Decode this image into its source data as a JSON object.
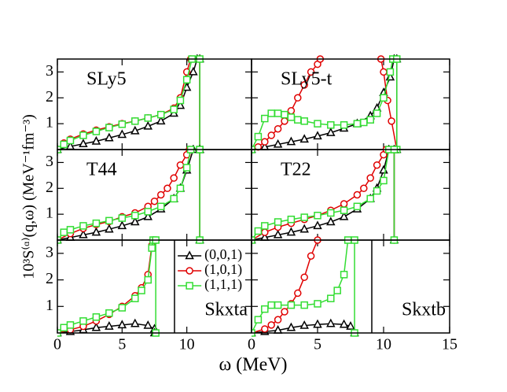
{
  "xlabel": "ω (MeV)",
  "ylabel": "10³S⁽ᵅ⁾(q,ω) (MeV⁻¹fm⁻³)",
  "chart_data": [
    {
      "type": "line",
      "label": "SLy5",
      "xlim": [
        0,
        15
      ],
      "ylim": [
        0,
        3.5
      ],
      "xticks": [
        0,
        5,
        10
      ],
      "yticks": [
        1,
        2,
        3
      ],
      "show_xtick_labels": false,
      "series": [
        {
          "color": "#000000",
          "marker": "triangle",
          "x": [
            0,
            1,
            2,
            3,
            4,
            5,
            6,
            7,
            8,
            9,
            9.5,
            10,
            10.5,
            10.8,
            11,
            11
          ],
          "values": [
            0,
            0.12,
            0.22,
            0.32,
            0.45,
            0.58,
            0.72,
            0.9,
            1.1,
            1.4,
            1.7,
            2.4,
            3.0,
            3.5,
            3.5,
            0
          ]
        },
        {
          "color": "#e00000",
          "marker": "circle",
          "x": [
            0,
            0.5,
            1,
            2,
            3,
            4,
            5,
            6,
            7,
            8,
            9,
            9.5,
            10,
            10.3,
            11,
            11
          ],
          "values": [
            0,
            0.25,
            0.4,
            0.6,
            0.75,
            0.88,
            1.0,
            1.1,
            1.22,
            1.35,
            1.6,
            2.0,
            3.0,
            3.5,
            3.5,
            0
          ]
        },
        {
          "color": "#33dd33",
          "marker": "square",
          "x": [
            0,
            0.5,
            1,
            2,
            3,
            4,
            5,
            6,
            7,
            8,
            9,
            9.5,
            10,
            10.4,
            11,
            11
          ],
          "values": [
            0,
            0.2,
            0.35,
            0.55,
            0.7,
            0.85,
            0.98,
            1.1,
            1.22,
            1.35,
            1.55,
            1.9,
            2.7,
            3.5,
            3.5,
            0
          ]
        }
      ]
    },
    {
      "type": "line",
      "label": "SLy5-t",
      "xlim": [
        0,
        15
      ],
      "ylim": [
        0,
        3.5
      ],
      "xticks": [
        0,
        5,
        10,
        15
      ],
      "yticks": [
        1,
        2,
        3
      ],
      "show_xtick_labels": false,
      "series": [
        {
          "color": "#000000",
          "marker": "triangle",
          "x": [
            0,
            1,
            2,
            3,
            4,
            5,
            6,
            7,
            8,
            9,
            9.5,
            10,
            10.5,
            10.8,
            11,
            11
          ],
          "values": [
            0,
            0.1,
            0.2,
            0.3,
            0.4,
            0.52,
            0.65,
            0.82,
            1.0,
            1.3,
            1.6,
            2.2,
            2.8,
            3.5,
            3.5,
            0
          ]
        },
        {
          "color": "#e00000",
          "marker": "circle",
          "x": [
            0,
            0.5,
            1,
            1.5,
            2,
            2.5,
            3,
            3.5,
            4,
            4.5,
            5,
            5.2,
            null,
            9.8,
            10,
            10.3,
            10.6,
            11
          ],
          "values": [
            0,
            0.1,
            0.3,
            0.55,
            0.8,
            1.1,
            1.5,
            2.0,
            2.5,
            3.0,
            3.3,
            3.5,
            null,
            3.5,
            3.0,
            1.9,
            1.1,
            0
          ]
        },
        {
          "color": "#33dd33",
          "marker": "square",
          "x": [
            0,
            0.5,
            1,
            1.5,
            2,
            2.5,
            3,
            3.5,
            4,
            5,
            6,
            7,
            8,
            8.5,
            9,
            9.5,
            10,
            10.5,
            10.7,
            11,
            11
          ],
          "values": [
            0,
            0.5,
            1.2,
            1.4,
            1.4,
            1.35,
            1.25,
            1.15,
            1.1,
            1.0,
            0.95,
            0.95,
            1.0,
            1.05,
            1.15,
            1.4,
            2.0,
            3.0,
            3.5,
            3.5,
            0
          ]
        }
      ]
    },
    {
      "type": "line",
      "label": "T44",
      "xlim": [
        0,
        15
      ],
      "ylim": [
        0,
        3.5
      ],
      "xticks": [
        0,
        5,
        10
      ],
      "yticks": [
        1,
        2,
        3
      ],
      "show_xtick_labels": false,
      "series": [
        {
          "color": "#000000",
          "marker": "triangle",
          "x": [
            0,
            1,
            2,
            3,
            4,
            5,
            6,
            7,
            8,
            9,
            9.5,
            10,
            10.5,
            11,
            11
          ],
          "values": [
            0,
            0.1,
            0.2,
            0.3,
            0.42,
            0.55,
            0.7,
            0.9,
            1.2,
            1.6,
            2.0,
            2.7,
            3.5,
            3.5,
            0
          ]
        },
        {
          "color": "#e00000",
          "marker": "circle",
          "x": [
            0,
            1,
            2,
            3,
            4,
            5,
            6,
            7,
            7.5,
            8,
            8.5,
            9,
            9.5,
            10,
            10.2,
            11,
            11
          ],
          "values": [
            0,
            0.25,
            0.45,
            0.6,
            0.72,
            0.9,
            1.05,
            1.3,
            1.5,
            1.75,
            2.0,
            2.4,
            2.9,
            3.3,
            3.5,
            3.5,
            0
          ]
        },
        {
          "color": "#33dd33",
          "marker": "square",
          "x": [
            0,
            0.5,
            1,
            2,
            3,
            4,
            5,
            6,
            7,
            8,
            9,
            9.5,
            10,
            10.3,
            11,
            11
          ],
          "values": [
            0,
            0.3,
            0.4,
            0.55,
            0.65,
            0.75,
            0.85,
            0.95,
            1.1,
            1.3,
            1.6,
            2.0,
            2.8,
            3.5,
            3.5,
            0
          ]
        }
      ]
    },
    {
      "type": "line",
      "label": "T22",
      "xlim": [
        0,
        15
      ],
      "ylim": [
        0,
        3.5
      ],
      "xticks": [
        0,
        5,
        10,
        15
      ],
      "yticks": [
        1,
        2,
        3
      ],
      "show_xtick_labels": false,
      "series": [
        {
          "color": "#000000",
          "marker": "triangle",
          "x": [
            0,
            1,
            2,
            3,
            4,
            5,
            6,
            7,
            8,
            9,
            9.5,
            10,
            10.4,
            10.8,
            10.8
          ],
          "values": [
            0,
            0.1,
            0.2,
            0.3,
            0.42,
            0.55,
            0.7,
            0.9,
            1.2,
            1.6,
            2.0,
            2.7,
            3.5,
            3.5,
            0
          ]
        },
        {
          "color": "#e00000",
          "marker": "circle",
          "x": [
            0,
            1,
            2,
            3,
            4,
            5,
            6,
            7,
            8,
            8.5,
            9,
            9.5,
            10,
            10.2,
            10.8,
            10.8
          ],
          "values": [
            0,
            0.3,
            0.5,
            0.65,
            0.8,
            0.95,
            1.15,
            1.4,
            1.75,
            2.0,
            2.4,
            2.9,
            3.3,
            3.5,
            3.5,
            0
          ]
        },
        {
          "color": "#33dd33",
          "marker": "square",
          "x": [
            0,
            0.5,
            1,
            2,
            3,
            4,
            5,
            6,
            7,
            8,
            9,
            9.5,
            10,
            10.4,
            10.8,
            10.8
          ],
          "values": [
            0,
            0.35,
            0.55,
            0.7,
            0.8,
            0.88,
            0.95,
            1.05,
            1.15,
            1.3,
            1.6,
            1.9,
            2.3,
            3.5,
            3.5,
            0
          ]
        }
      ]
    },
    {
      "type": "line",
      "label": "Skxta",
      "xlim": [
        0,
        15
      ],
      "ylim": [
        0,
        3.5
      ],
      "xticks": [
        0,
        5,
        10
      ],
      "yticks": [
        1,
        2,
        3
      ],
      "show_xtick_labels": true,
      "legend": "upper right",
      "series": [
        {
          "name": "(0,0,1)",
          "color": "#000000",
          "marker": "triangle",
          "x": [
            0,
            1,
            2,
            3,
            4,
            5,
            6,
            7,
            7.5,
            7.5
          ],
          "values": [
            0,
            0.05,
            0.12,
            0.2,
            0.25,
            0.3,
            0.35,
            0.28,
            0.15,
            0
          ]
        },
        {
          "name": "(1,0,1)",
          "color": "#e00000",
          "marker": "circle",
          "x": [
            0,
            1,
            2,
            3,
            4,
            5,
            6,
            6.5,
            7,
            7.3,
            7.4
          ],
          "values": [
            0,
            0.12,
            0.25,
            0.45,
            0.7,
            1.0,
            1.4,
            1.7,
            2.2,
            3.3,
            3.5
          ]
        },
        {
          "name": "(1,1,1)",
          "color": "#33dd33",
          "marker": "square",
          "x": [
            0,
            0.5,
            1,
            2,
            3,
            4,
            5,
            6,
            6.5,
            7,
            7.3,
            7.4,
            7.6,
            7.6
          ],
          "values": [
            0,
            0.2,
            0.3,
            0.45,
            0.6,
            0.75,
            0.95,
            1.3,
            1.6,
            2.0,
            3.2,
            3.5,
            3.5,
            0
          ]
        }
      ]
    },
    {
      "type": "line",
      "label": "Skxtb",
      "xlim": [
        0,
        15
      ],
      "ylim": [
        0,
        3.5
      ],
      "xticks": [
        0,
        5,
        10,
        15
      ],
      "yticks": [
        1,
        2,
        3
      ],
      "show_xtick_labels": true,
      "series": [
        {
          "color": "#000000",
          "marker": "triangle",
          "x": [
            0,
            1,
            2,
            3,
            4,
            5,
            6,
            7,
            7.5,
            7.8
          ],
          "values": [
            0,
            0.05,
            0.1,
            0.2,
            0.28,
            0.32,
            0.35,
            0.32,
            0.25,
            0
          ]
        },
        {
          "color": "#e00000",
          "marker": "circle",
          "x": [
            0,
            1,
            1.5,
            2,
            2.5,
            3,
            3.5,
            4,
            4.5,
            5
          ],
          "values": [
            0,
            0.15,
            0.3,
            0.5,
            0.8,
            1.1,
            1.5,
            2.1,
            2.9,
            3.5
          ]
        },
        {
          "color": "#33dd33",
          "marker": "square",
          "x": [
            0,
            0.5,
            1,
            1.5,
            2,
            3,
            4,
            5,
            6,
            6.5,
            7,
            7.3,
            7.8,
            7.8
          ],
          "values": [
            0,
            0.5,
            0.9,
            1.05,
            1.05,
            1.05,
            1.05,
            1.1,
            1.3,
            1.6,
            2.2,
            3.5,
            3.5,
            0
          ]
        }
      ]
    }
  ]
}
